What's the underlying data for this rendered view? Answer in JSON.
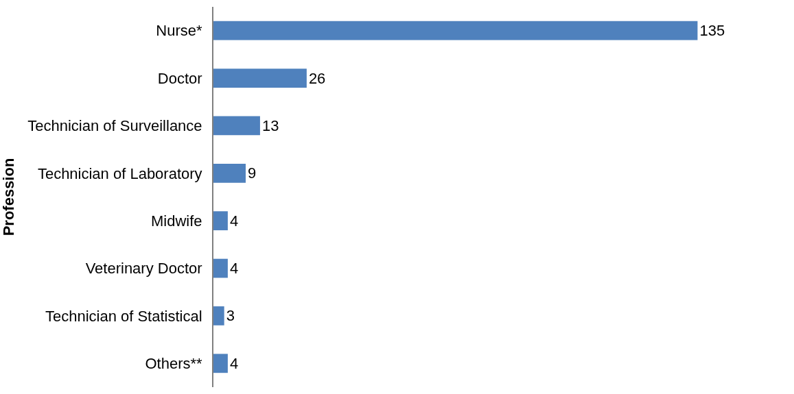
{
  "chart_data": {
    "type": "bar",
    "orientation": "horizontal",
    "ylabel": "Profession",
    "categories": [
      "Nurse*",
      "Doctor",
      "Technician of Surveillance",
      "Technician of Laboratory",
      "Midwife",
      "Veterinary Doctor",
      "Technician of Statistical",
      "Others**"
    ],
    "values": [
      135,
      26,
      13,
      9,
      4,
      4,
      3,
      4
    ],
    "color": "#4f81bd",
    "data_labels": true
  }
}
